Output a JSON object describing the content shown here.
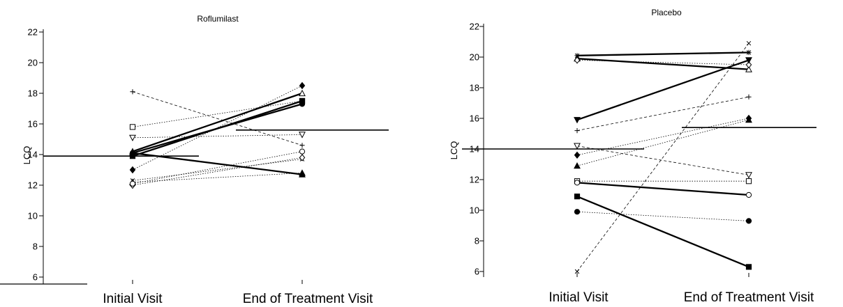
{
  "chart_data": [
    {
      "type": "line",
      "title": "Roflumilast",
      "xlabel": "",
      "ylabel": "LCQ",
      "categories": [
        "Initial Visit",
        "End of Treatment Visit"
      ],
      "ylim": [
        6,
        22
      ],
      "yticks": [
        6,
        8,
        10,
        12,
        14,
        16,
        18,
        20,
        22
      ],
      "grid": false,
      "legend": "none",
      "series": [
        {
          "values": [
            18.1,
            14.6
          ],
          "marker": "plus",
          "style": "dashed"
        },
        {
          "values": [
            15.8,
            17.5
          ],
          "marker": "square-open",
          "style": "dotted"
        },
        {
          "values": [
            15.1,
            15.3
          ],
          "marker": "tri-down-open",
          "style": "dotted"
        },
        {
          "values": [
            14.2,
            18.0
          ],
          "marker": "tri-up-open",
          "style": "bold"
        },
        {
          "values": [
            14.1,
            17.3
          ],
          "marker": "circle",
          "style": "bold"
        },
        {
          "values": [
            14.1,
            12.7
          ],
          "marker": "tri-up",
          "style": "bold"
        },
        {
          "values": [
            13.9,
            17.5
          ],
          "marker": "square",
          "style": "bold"
        },
        {
          "values": [
            13.0,
            18.5
          ],
          "marker": "diamond",
          "style": "dotted"
        },
        {
          "values": [
            12.3,
            13.7
          ],
          "marker": "cross",
          "style": "dotted"
        },
        {
          "values": [
            12.2,
            12.8
          ],
          "marker": "tri-up",
          "style": "dotted"
        },
        {
          "values": [
            12.0,
            13.8
          ],
          "marker": "diamond-open",
          "style": "dotted"
        },
        {
          "values": [
            12.1,
            14.2
          ],
          "marker": "circle-open",
          "style": "dotted"
        }
      ],
      "means": [
        13.9,
        15.6
      ]
    },
    {
      "type": "line",
      "title": "Placebo",
      "xlabel": "",
      "ylabel": "LCQ",
      "categories": [
        "Initial Visit",
        "End of Treatment Visit"
      ],
      "ylim": [
        6,
        22
      ],
      "yticks": [
        6,
        8,
        10,
        12,
        14,
        16,
        18,
        20,
        22
      ],
      "grid": false,
      "legend": "none",
      "series": [
        {
          "values": [
            20.1,
            20.3
          ],
          "marker": "asterisk",
          "style": "bold"
        },
        {
          "values": [
            19.9,
            19.2
          ],
          "marker": "tri-up-open",
          "style": "bold"
        },
        {
          "values": [
            19.8,
            19.5
          ],
          "marker": "diamond-open",
          "style": "dotted"
        },
        {
          "values": [
            15.9,
            19.8
          ],
          "marker": "tri-down",
          "style": "bold"
        },
        {
          "values": [
            15.2,
            17.4
          ],
          "marker": "plus",
          "style": "dashed"
        },
        {
          "values": [
            14.2,
            12.3
          ],
          "marker": "tri-down-open",
          "style": "dashed"
        },
        {
          "values": [
            13.6,
            16.0
          ],
          "marker": "diamond",
          "style": "dotted"
        },
        {
          "values": [
            12.9,
            15.9
          ],
          "marker": "tri-up",
          "style": "dotted"
        },
        {
          "values": [
            11.9,
            11.9
          ],
          "marker": "square-open",
          "style": "dotted"
        },
        {
          "values": [
            11.8,
            11.0
          ],
          "marker": "circle-open",
          "style": "bold"
        },
        {
          "values": [
            10.9,
            6.3
          ],
          "marker": "square",
          "style": "bold"
        },
        {
          "values": [
            9.9,
            9.3
          ],
          "marker": "circle",
          "style": "dotted"
        },
        {
          "values": [
            6.0,
            20.9
          ],
          "marker": "cross",
          "style": "dashed"
        }
      ],
      "means": [
        14.0,
        15.4
      ]
    }
  ]
}
